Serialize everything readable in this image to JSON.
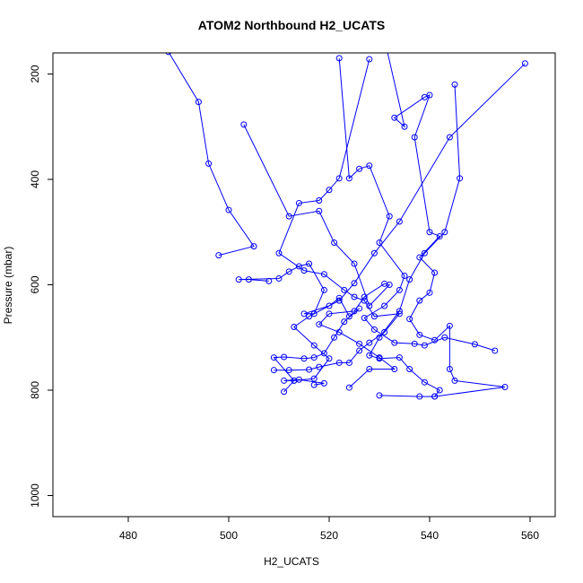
{
  "chart_data": {
    "type": "line",
    "title": "ATOM2 Northbound H2_UCATS",
    "xlabel": "H2_UCATS",
    "ylabel": "Pressure (mbar)",
    "xlim": [
      465,
      565
    ],
    "ylim": [
      1040,
      160
    ],
    "y_reversed": true,
    "x_ticks": [
      480,
      500,
      520,
      540,
      560
    ],
    "y_ticks": [
      200,
      400,
      600,
      800,
      1000
    ],
    "grid": false,
    "series_color": "#0000ff",
    "marker": "open-circle",
    "series": [
      {
        "name": "",
        "points": [
          [
            488,
            158
          ],
          [
            494,
            253
          ],
          [
            496,
            370
          ],
          [
            500,
            458
          ],
          [
            505,
            527
          ],
          [
            498,
            544
          ]
        ]
      },
      {
        "name": "",
        "points": [
          [
            508,
            593
          ],
          [
            504,
            590
          ],
          [
            502,
            590
          ],
          [
            510,
            588
          ],
          [
            512,
            575
          ],
          [
            514,
            565
          ],
          [
            516,
            560
          ],
          [
            519,
            610
          ],
          [
            517,
            655
          ],
          [
            515,
            655
          ],
          [
            520,
            640
          ],
          [
            522,
            625
          ],
          [
            524,
            660
          ],
          [
            526,
            645
          ],
          [
            523,
            670
          ],
          [
            521,
            700
          ],
          [
            519,
            730
          ],
          [
            517,
            738
          ],
          [
            515,
            740
          ],
          [
            511,
            737
          ],
          [
            509,
            738
          ],
          [
            513,
            782
          ],
          [
            511,
            803
          ]
        ]
      },
      {
        "name": "",
        "points": [
          [
            503,
            296
          ],
          [
            512,
            470
          ],
          [
            518,
            460
          ],
          [
            521,
            520
          ],
          [
            525,
            560
          ],
          [
            528,
            640
          ],
          [
            532,
            600
          ],
          [
            531,
            598
          ],
          [
            527,
            623
          ],
          [
            525,
            650
          ],
          [
            520,
            655
          ],
          [
            518,
            675
          ],
          [
            522,
            690
          ],
          [
            526,
            712
          ],
          [
            530,
            738
          ],
          [
            533,
            760
          ],
          [
            528,
            760
          ],
          [
            524,
            795
          ]
        ]
      },
      {
        "name": "",
        "points": [
          [
            522,
            170
          ],
          [
            524,
            398
          ],
          [
            526,
            380
          ],
          [
            528,
            374
          ],
          [
            532,
            470
          ],
          [
            530,
            520
          ],
          [
            535,
            583
          ],
          [
            534,
            610
          ],
          [
            531,
            640
          ],
          [
            527,
            663
          ],
          [
            529,
            685
          ],
          [
            533,
            710
          ],
          [
            537,
            712
          ],
          [
            539,
            715
          ],
          [
            543,
            700
          ],
          [
            549,
            713
          ],
          [
            553,
            725
          ]
        ]
      },
      {
        "name": "",
        "points": [
          [
            531,
            133
          ],
          [
            535,
            300
          ],
          [
            533,
            283
          ],
          [
            539,
            244
          ],
          [
            540,
            240
          ],
          [
            537,
            320
          ],
          [
            540,
            500
          ],
          [
            542,
            508
          ],
          [
            538,
            548
          ],
          [
            541,
            577
          ],
          [
            540,
            615
          ],
          [
            538,
            630
          ],
          [
            536,
            665
          ],
          [
            538,
            695
          ],
          [
            541,
            705
          ],
          [
            544,
            678
          ],
          [
            544,
            760
          ],
          [
            545,
            782
          ],
          [
            555,
            794
          ],
          [
            541,
            812
          ],
          [
            538,
            812
          ],
          [
            530,
            810
          ]
        ]
      },
      {
        "name": "",
        "points": [
          [
            528,
            172
          ],
          [
            522,
            398
          ],
          [
            520,
            420
          ],
          [
            518,
            440
          ],
          [
            514,
            445
          ],
          [
            510,
            540
          ],
          [
            515,
            573
          ],
          [
            519,
            580
          ],
          [
            523,
            610
          ],
          [
            525,
            623
          ],
          [
            527,
            630
          ],
          [
            529,
            660
          ],
          [
            534,
            655
          ],
          [
            531,
            690
          ],
          [
            528,
            710
          ],
          [
            526,
            725
          ],
          [
            524,
            748
          ],
          [
            522,
            748
          ],
          [
            518,
            756
          ],
          [
            516,
            761
          ],
          [
            512,
            762
          ],
          [
            509,
            762
          ]
        ]
      },
      {
        "name": "",
        "points": [
          [
            545,
            220
          ],
          [
            546,
            398
          ],
          [
            543,
            500
          ],
          [
            539,
            540
          ],
          [
            536,
            590
          ],
          [
            534,
            650
          ],
          [
            530,
            700
          ],
          [
            528,
            734
          ],
          [
            530,
            740
          ],
          [
            534,
            738
          ],
          [
            536,
            760
          ],
          [
            539,
            785
          ],
          [
            542,
            800
          ],
          [
            541,
            812
          ]
        ]
      },
      {
        "name": "",
        "points": [
          [
            559,
            180
          ],
          [
            544,
            320
          ],
          [
            534,
            480
          ],
          [
            529,
            540
          ],
          [
            525,
            597
          ],
          [
            522,
            630
          ],
          [
            516,
            660
          ],
          [
            513,
            680
          ],
          [
            517,
            715
          ],
          [
            520,
            740
          ],
          [
            517,
            778
          ],
          [
            513,
            782
          ],
          [
            511,
            782
          ],
          [
            514,
            780
          ],
          [
            519,
            787
          ],
          [
            517,
            790
          ]
        ]
      }
    ]
  }
}
